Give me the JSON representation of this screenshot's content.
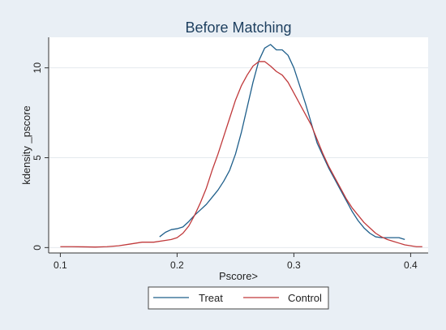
{
  "chart_data": {
    "type": "line",
    "title": "Before Matching",
    "xlabel": "Pscore>",
    "ylabel": "kdensity _pscore",
    "xlim": [
      0.09,
      0.415
    ],
    "ylim": [
      -0.3,
      11.7
    ],
    "x_ticks": [
      0.1,
      0.2,
      0.3,
      0.4
    ],
    "x_tick_labels": [
      "0.1",
      "0.2",
      "0.3",
      "0.4"
    ],
    "y_ticks": [
      0,
      5,
      10
    ],
    "y_tick_labels": [
      "0",
      "5",
      "10"
    ],
    "grid": true,
    "legend_position": "bottom",
    "series": [
      {
        "name": "Treat",
        "color": "#1f5f8b",
        "x": [
          0.185,
          0.19,
          0.195,
          0.2,
          0.205,
          0.21,
          0.215,
          0.22,
          0.225,
          0.23,
          0.235,
          0.24,
          0.245,
          0.25,
          0.255,
          0.26,
          0.265,
          0.27,
          0.275,
          0.28,
          0.285,
          0.29,
          0.295,
          0.3,
          0.305,
          0.31,
          0.315,
          0.32,
          0.325,
          0.33,
          0.335,
          0.34,
          0.345,
          0.35,
          0.355,
          0.36,
          0.365,
          0.37,
          0.375,
          0.38,
          0.385,
          0.39,
          0.395
        ],
        "y": [
          0.6,
          0.85,
          1.0,
          1.05,
          1.15,
          1.45,
          1.8,
          2.1,
          2.4,
          2.8,
          3.2,
          3.7,
          4.3,
          5.2,
          6.4,
          7.8,
          9.2,
          10.4,
          11.1,
          11.3,
          11.0,
          11.0,
          10.7,
          10.0,
          9.0,
          8.0,
          6.9,
          5.8,
          5.1,
          4.4,
          3.8,
          3.2,
          2.6,
          2.0,
          1.5,
          1.1,
          0.8,
          0.6,
          0.55,
          0.55,
          0.55,
          0.55,
          0.45
        ]
      },
      {
        "name": "Control",
        "color": "#c0393b",
        "x": [
          0.1,
          0.11,
          0.12,
          0.13,
          0.14,
          0.15,
          0.16,
          0.17,
          0.18,
          0.19,
          0.195,
          0.2,
          0.205,
          0.21,
          0.215,
          0.22,
          0.225,
          0.23,
          0.235,
          0.24,
          0.245,
          0.25,
          0.255,
          0.26,
          0.265,
          0.27,
          0.275,
          0.28,
          0.285,
          0.29,
          0.295,
          0.3,
          0.305,
          0.31,
          0.315,
          0.32,
          0.325,
          0.33,
          0.335,
          0.34,
          0.345,
          0.35,
          0.355,
          0.36,
          0.365,
          0.37,
          0.375,
          0.38,
          0.385,
          0.39,
          0.395,
          0.4,
          0.405,
          0.41
        ],
        "y": [
          0.05,
          0.05,
          0.04,
          0.03,
          0.05,
          0.1,
          0.2,
          0.3,
          0.3,
          0.4,
          0.45,
          0.55,
          0.8,
          1.2,
          1.8,
          2.5,
          3.3,
          4.3,
          5.2,
          6.2,
          7.2,
          8.2,
          9.0,
          9.6,
          10.1,
          10.35,
          10.35,
          10.1,
          9.8,
          9.6,
          9.2,
          8.6,
          8.0,
          7.4,
          6.8,
          6.0,
          5.2,
          4.5,
          3.9,
          3.3,
          2.7,
          2.2,
          1.8,
          1.4,
          1.1,
          0.8,
          0.6,
          0.45,
          0.35,
          0.25,
          0.15,
          0.1,
          0.05,
          0.05
        ]
      }
    ]
  }
}
